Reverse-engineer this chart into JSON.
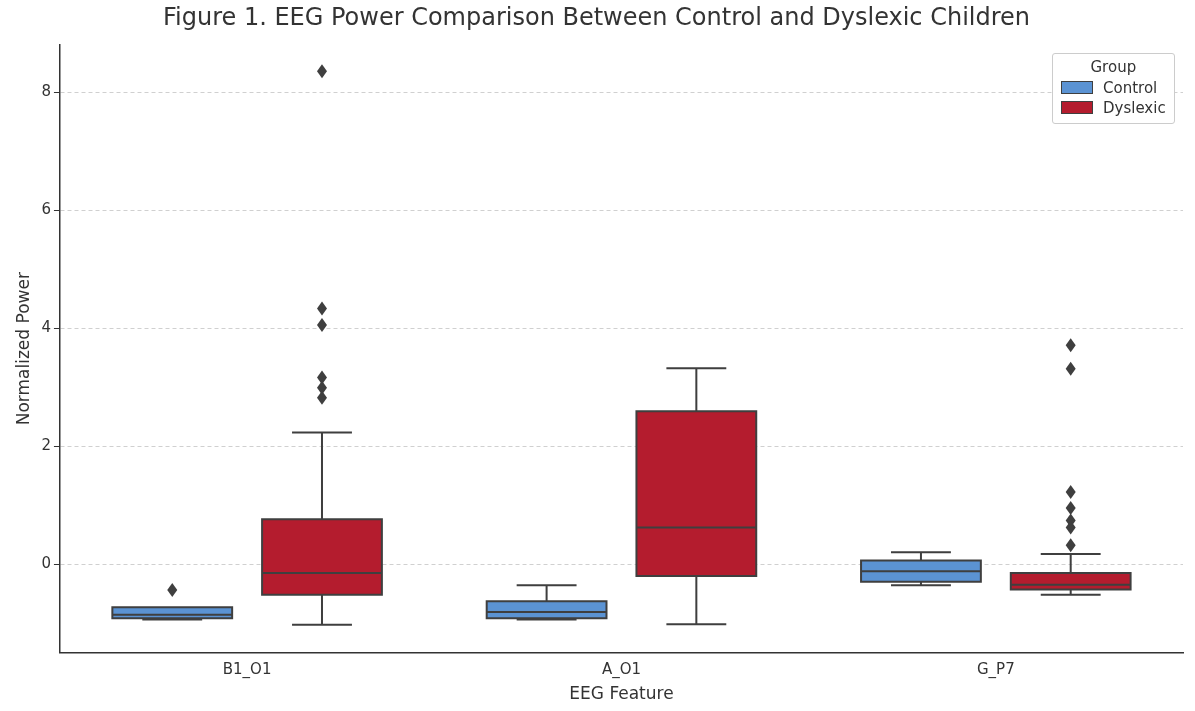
{
  "chart_data": {
    "type": "box",
    "title": "Figure 1. EEG Power Comparison Between Control and Dyslexic Children",
    "xlabel": "EEG Feature",
    "ylabel": "Normalized Power",
    "legend_title": "Group",
    "legend": "top right",
    "grid": "y",
    "categories": [
      "B1_O1",
      "A_O1",
      "G_P7"
    ],
    "ylim": [
      -1.5,
      8.8
    ],
    "yticks": [
      0,
      2,
      4,
      6,
      8
    ],
    "series": [
      {
        "name": "Control",
        "color": "#5b93d3",
        "boxes": [
          {
            "low": -0.94,
            "q1": -0.92,
            "median": -0.86,
            "q3": -0.73,
            "high": -0.73,
            "outliers": [
              -0.44
            ]
          },
          {
            "low": -0.94,
            "q1": -0.92,
            "median": -0.81,
            "q3": -0.63,
            "high": -0.36
          },
          {
            "low": -0.36,
            "q1": -0.3,
            "median": -0.12,
            "q3": 0.06,
            "high": 0.2
          }
        ]
      },
      {
        "name": "Dyslexic",
        "color": "#b41c2e",
        "boxes": [
          {
            "low": -1.03,
            "q1": -0.52,
            "median": -0.15,
            "q3": 0.76,
            "high": 2.23,
            "outliers": [
              8.35,
              4.33,
              4.05,
              3.16,
              2.99,
              2.82
            ]
          },
          {
            "low": -1.02,
            "q1": -0.2,
            "median": 0.62,
            "q3": 2.59,
            "high": 3.32
          },
          {
            "low": -0.52,
            "q1": -0.43,
            "median": -0.35,
            "q3": -0.15,
            "high": 0.17,
            "outliers": [
              3.71,
              3.31,
              1.22,
              0.95,
              0.74,
              0.62,
              0.32
            ]
          }
        ]
      }
    ]
  }
}
